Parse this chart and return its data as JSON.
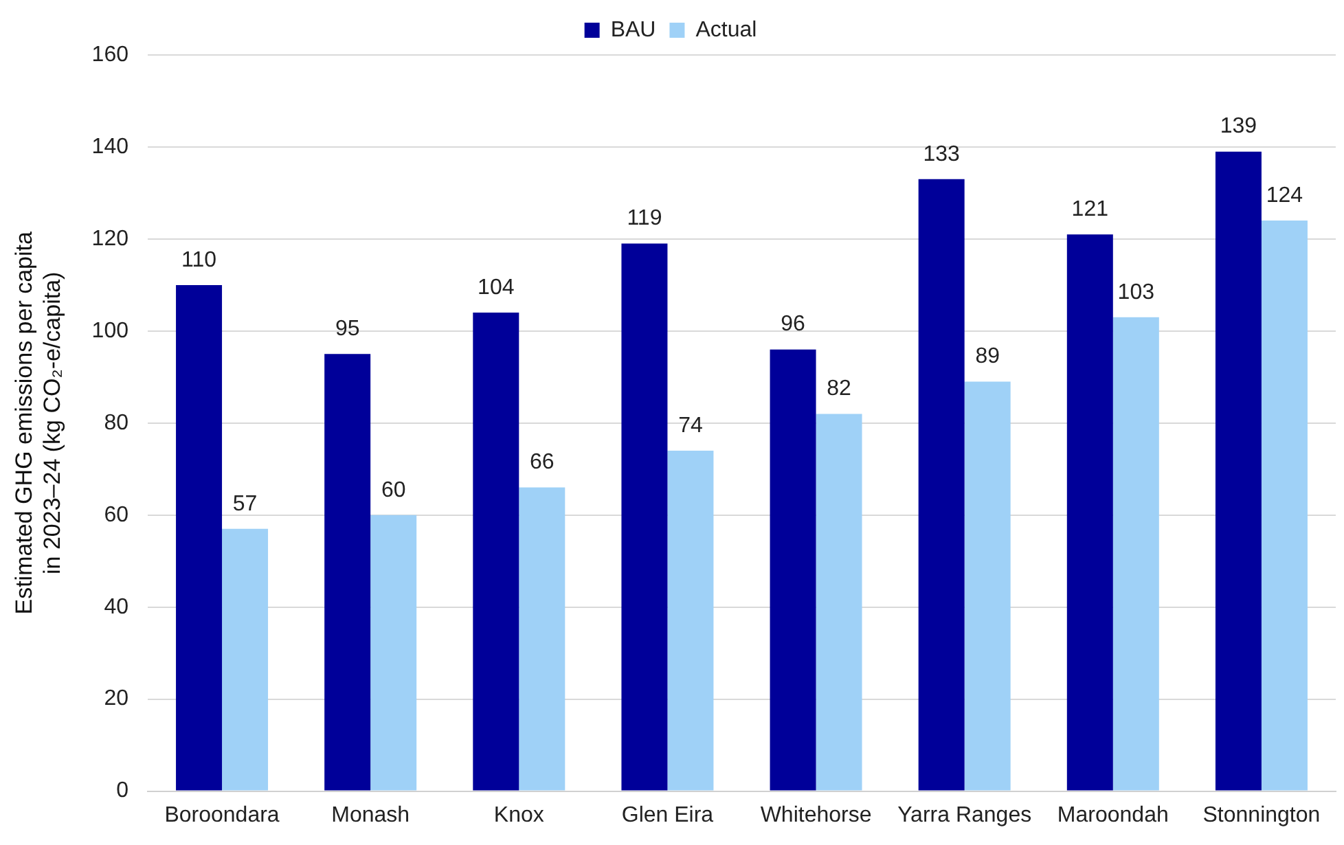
{
  "chart_data": {
    "type": "bar",
    "ylabel": "Estimated GHG emissions per capita in 2023–24 (kg CO₂-e/capita)",
    "categories": [
      "Boroondara",
      "Monash",
      "Knox",
      "Glen Eira",
      "Whitehorse",
      "Yarra Ranges",
      "Maroondah",
      "Stonnington"
    ],
    "series": [
      {
        "name": "BAU",
        "color": "#000099",
        "values": [
          110,
          95,
          104,
          119,
          96,
          133,
          121,
          139
        ]
      },
      {
        "name": "Actual",
        "color": "#9fd1f7",
        "values": [
          57,
          60,
          66,
          74,
          82,
          89,
          103,
          124
        ]
      }
    ],
    "ylim": [
      0,
      160
    ],
    "yticks": [
      0,
      20,
      40,
      60,
      80,
      100,
      120,
      140,
      160
    ],
    "grid": "y",
    "legend": "top",
    "data_labels": true
  }
}
